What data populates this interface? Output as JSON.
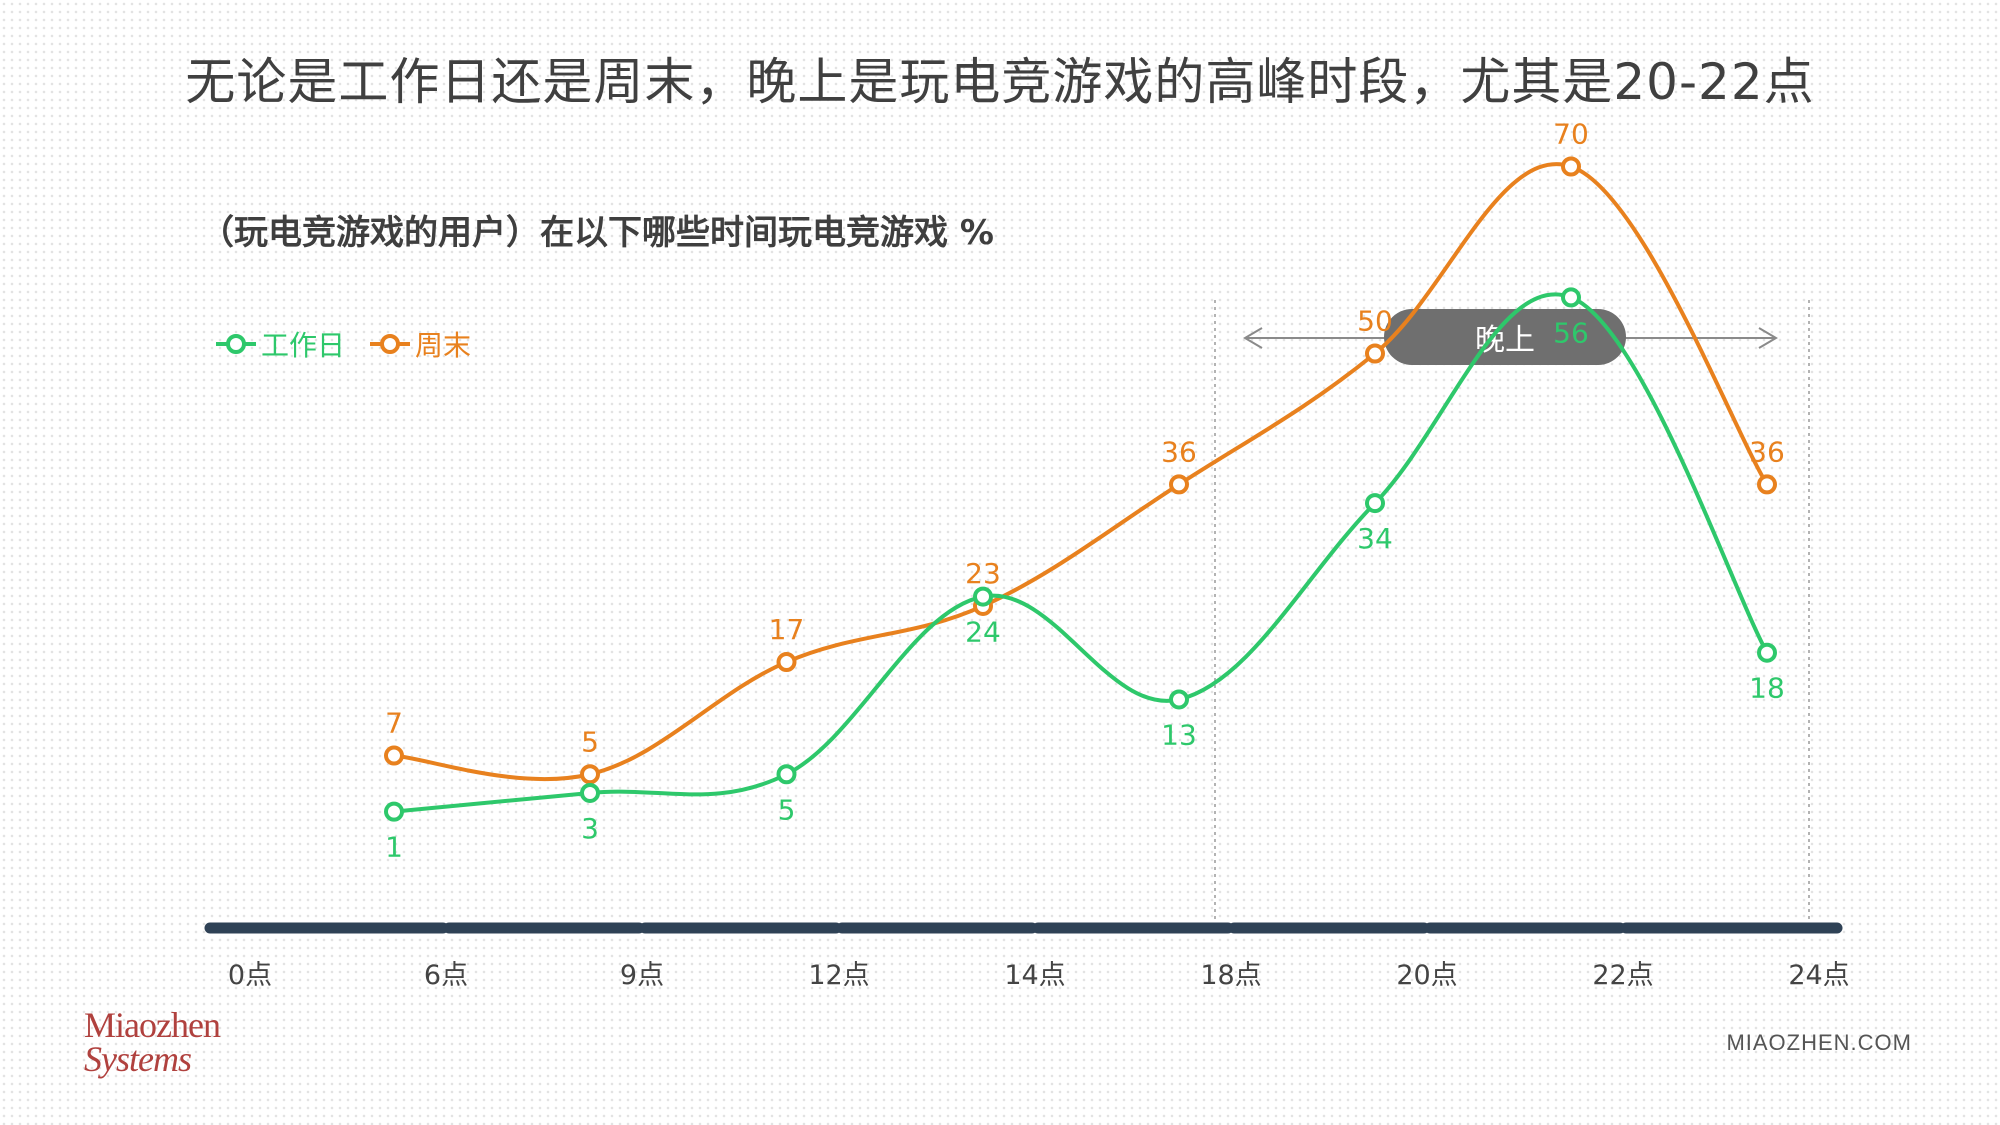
{
  "headline": "无论是工作日还是周末，晚上是玩电竞游戏的高峰时段，尤其是20-22点",
  "subtitle": "（玩电竞游戏的用户）在以下哪些时间玩电竞游戏 %",
  "logo": {
    "line1": "Miaozhen",
    "line2": "Systems"
  },
  "site": "MIAOZHEN.COM",
  "chart_data": {
    "type": "line",
    "x_ticks": [
      "0点",
      "6点",
      "9点",
      "12点",
      "14点",
      "18点",
      "20点",
      "22点",
      "24点"
    ],
    "series": [
      {
        "name": "工作日",
        "color": "#2ec86b",
        "values": [
          1,
          3,
          5,
          24,
          13,
          34,
          56,
          18
        ]
      },
      {
        "name": "周末",
        "color": "#e8811e",
        "values": [
          7,
          5,
          17,
          23,
          36,
          50,
          70,
          36
        ]
      }
    ],
    "annotation": "晚上",
    "grid": false
  }
}
